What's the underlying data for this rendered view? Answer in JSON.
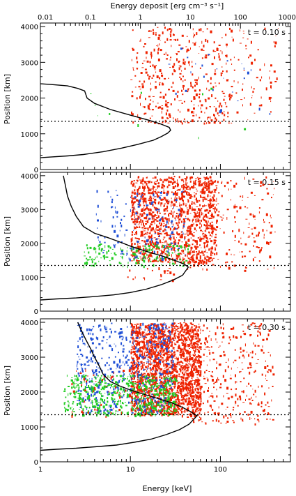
{
  "chart_data": {
    "type": "scatter",
    "top_axis": {
      "label": "Energy deposit [erg cm⁻³ s⁻¹]",
      "scale": "log",
      "range": [
        0.01,
        1000
      ],
      "ticks": [
        {
          "v": 0.01,
          "label": "0.01"
        },
        {
          "v": 0.1,
          "label": "0.1"
        },
        {
          "v": 1,
          "label": "1"
        },
        {
          "v": 10,
          "label": "10"
        },
        {
          "v": 100,
          "label": "100"
        },
        {
          "v": 1000,
          "label": "1000"
        }
      ]
    },
    "bottom_axis": {
      "label": "Energy [keV]",
      "scale": "log",
      "range": [
        1,
        600
      ],
      "ticks": [
        {
          "v": 1,
          "label": "1"
        },
        {
          "v": 10,
          "label": "10"
        },
        {
          "v": 100,
          "label": "100"
        }
      ]
    },
    "y_axis": {
      "label": "Position [km]",
      "range": [
        0,
        4100
      ],
      "ticks": [
        {
          "v": 0,
          "label": "0"
        },
        {
          "v": 1000,
          "label": "1000"
        },
        {
          "v": 2000,
          "label": "2000"
        },
        {
          "v": 3000,
          "label": "3000"
        },
        {
          "v": 4000,
          "label": "4000"
        }
      ]
    },
    "reference_line_km": 1350,
    "colors": {
      "high": "#ee2200",
      "mid": "#1f4fd6",
      "low": "#22cc22",
      "line": "#000000"
    },
    "panels": [
      {
        "time_label": "t = 0.10 s",
        "curve_x_energy_keV": [
          1.0,
          1.3,
          2.0,
          3.0,
          5.0,
          8.0,
          12.0,
          18.0,
          22.0,
          26.0,
          28.0,
          27.0,
          22.0,
          16.0,
          10.0,
          6.0,
          4.0,
          3.3,
          3.1,
          2.6,
          2.0,
          1.3,
          1.0
        ],
        "curve_y_km": [
          330,
          350,
          380,
          420,
          500,
          600,
          700,
          820,
          920,
          1020,
          1100,
          1180,
          1270,
          1380,
          1520,
          1680,
          1850,
          2000,
          2200,
          2270,
          2340,
          2380,
          2400
        ],
        "populations": [
          {
            "color": "high",
            "count": 420,
            "x_range": [
              10,
              130
            ],
            "y_range": [
              1300,
              4000
            ]
          },
          {
            "color": "high",
            "count": 70,
            "x_range": [
              130,
              450
            ],
            "y_range": [
              1400,
              4000
            ]
          },
          {
            "color": "mid",
            "count": 25,
            "x_range": [
              25,
              350
            ],
            "y_range": [
              1400,
              3500
            ]
          },
          {
            "color": "low",
            "count": 10,
            "x_range": [
              3,
              200
            ],
            "y_range": [
              900,
              2500
            ]
          }
        ]
      },
      {
        "time_label": "t = 0.15 s",
        "curve_x_energy_keV": [
          1.0,
          1.5,
          2.5,
          4.0,
          6.5,
          10.0,
          15.0,
          22.0,
          30.0,
          38.0,
          44.0,
          40.0,
          34.0,
          28.0,
          22.0,
          17.0,
          13.0,
          10.0,
          7.5,
          5.5,
          4.0,
          3.0,
          2.5,
          2.2,
          2.0,
          1.9,
          1.8
        ],
        "curve_y_km": [
          330,
          360,
          390,
          430,
          480,
          550,
          650,
          780,
          920,
          1060,
          1300,
          1380,
          1460,
          1540,
          1640,
          1720,
          1820,
          1920,
          2050,
          2180,
          2300,
          2500,
          2800,
          3100,
          3400,
          3700,
          4000
        ],
        "populations": [
          {
            "color": "high",
            "count": 1300,
            "x_range": [
              10,
              90
            ],
            "y_range": [
              1450,
              4000
            ]
          },
          {
            "color": "high",
            "count": 220,
            "x_range": [
              40,
              400
            ],
            "y_range": [
              1200,
              4000
            ]
          },
          {
            "color": "mid",
            "count": 160,
            "x_range": [
              4,
              40
            ],
            "y_range": [
              1450,
              3600
            ]
          },
          {
            "color": "low",
            "count": 170,
            "x_range": [
              3,
              45
            ],
            "y_range": [
              1350,
              2000
            ]
          },
          {
            "color": "high",
            "count": 20,
            "x_range": [
              8,
              30
            ],
            "y_range": [
              900,
              1350
            ]
          }
        ]
      },
      {
        "time_label": "t = 0.30 s",
        "curve_x_energy_keV": [
          1.0,
          1.5,
          2.5,
          4.0,
          7.0,
          11.0,
          17.0,
          25.0,
          35.0,
          45.0,
          55.0,
          48.0,
          38.0,
          28.0,
          20.0,
          14.0,
          10.0,
          7.5,
          6.0,
          5.0,
          4.5,
          4.0,
          3.6,
          3.2,
          2.8,
          2.6
        ],
        "curve_y_km": [
          330,
          360,
          390,
          430,
          480,
          560,
          650,
          780,
          920,
          1080,
          1320,
          1420,
          1560,
          1700,
          1820,
          1940,
          2060,
          2180,
          2300,
          2500,
          2750,
          3000,
          3250,
          3500,
          3800,
          4000
        ],
        "populations": [
          {
            "color": "high",
            "count": 2000,
            "x_range": [
              10,
              60
            ],
            "y_range": [
              1350,
              4000
            ]
          },
          {
            "color": "high",
            "count": 350,
            "x_range": [
              40,
              380
            ],
            "y_range": [
              1100,
              4000
            ]
          },
          {
            "color": "mid",
            "count": 550,
            "x_range": [
              2.5,
              30
            ],
            "y_range": [
              1400,
              4000
            ]
          },
          {
            "color": "low",
            "count": 550,
            "x_range": [
              1.8,
              32
            ],
            "y_range": [
              1350,
              2500
            ]
          },
          {
            "color": "high",
            "count": 60,
            "x_range": [
              2,
              12
            ],
            "y_range": [
              1300,
              2700
            ]
          }
        ]
      }
    ]
  }
}
